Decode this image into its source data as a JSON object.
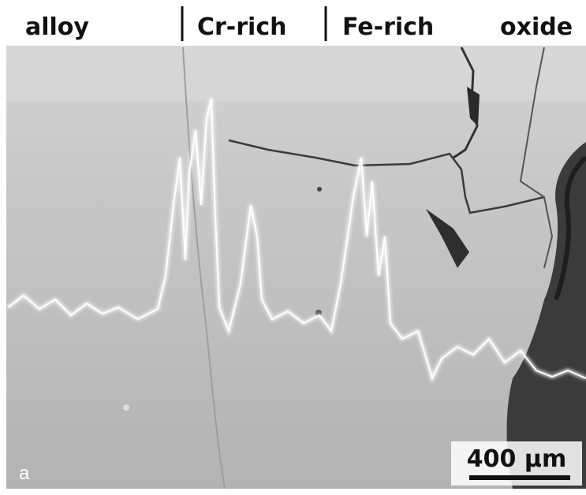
{
  "header": {
    "labels": [
      "alloy",
      "Cr-rich",
      "Fe-rich",
      "oxide"
    ]
  },
  "image": {
    "panel_label": "a",
    "scale_bar": "400 μm"
  }
}
